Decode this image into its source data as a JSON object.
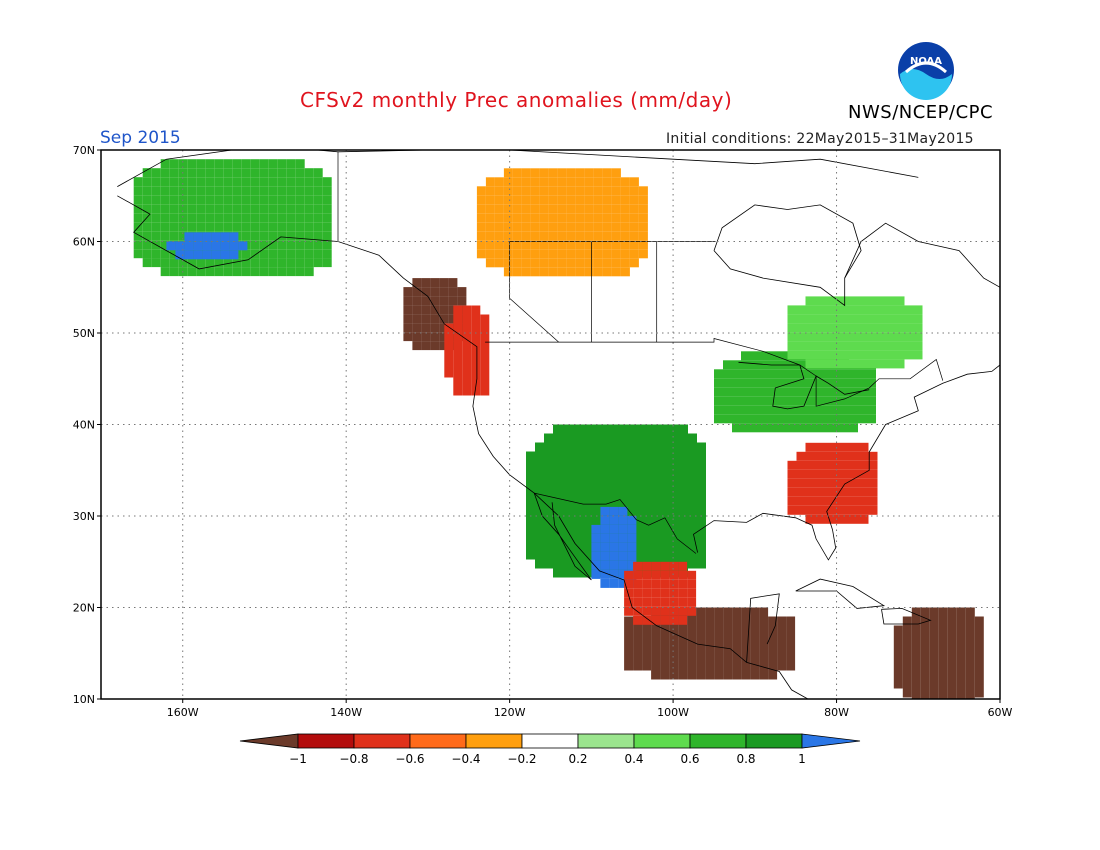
{
  "header": {
    "title": "CFSv2 monthly Prec anomalies (mm/day)",
    "period": "Sep 2015",
    "initial_conditions": "Initial conditions: 22May2015–31May2015",
    "agency": "NWS/NCEP/CPC",
    "logo_text": "NOAA"
  },
  "map": {
    "lon_range": [
      -170,
      -60
    ],
    "lat_range": [
      10,
      70
    ],
    "lat_ticks": [
      {
        "value": 70,
        "label": "70N"
      },
      {
        "value": 60,
        "label": "60N"
      },
      {
        "value": 50,
        "label": "50N"
      },
      {
        "value": 40,
        "label": "40N"
      },
      {
        "value": 30,
        "label": "30N"
      },
      {
        "value": 20,
        "label": "20N"
      },
      {
        "value": 10,
        "label": "10N"
      }
    ],
    "lon_ticks": [
      {
        "value": -160,
        "label": "160W"
      },
      {
        "value": -140,
        "label": "140W"
      },
      {
        "value": -120,
        "label": "120W"
      },
      {
        "value": -100,
        "label": "100W"
      },
      {
        "value": -80,
        "label": "80W"
      },
      {
        "value": -60,
        "label": "60W"
      }
    ],
    "gridlines": "dotted",
    "anomaly_regions": [
      {
        "name": "alaska-wet",
        "category": 0.6,
        "lon": [
          -166,
          -142
        ],
        "lat": [
          57,
          69
        ]
      },
      {
        "name": "alaska-wettest",
        "category": 1.0,
        "lon": [
          -162,
          -153
        ],
        "lat": [
          59,
          61
        ]
      },
      {
        "name": "yukon-dry",
        "category": -0.4,
        "lon": [
          -124,
          -104
        ],
        "lat": [
          57,
          68
        ]
      },
      {
        "name": "bc-coast-very-dry",
        "category": -1.0,
        "lon": [
          -133,
          -126
        ],
        "lat": [
          49,
          56
        ]
      },
      {
        "name": "pacific-nw-dry",
        "category": -0.8,
        "lon": [
          -128,
          -123
        ],
        "lat": [
          44,
          53
        ]
      },
      {
        "name": "us-southwest-wet",
        "category": 0.8,
        "lon": [
          -118,
          -96
        ],
        "lat": [
          24,
          40
        ]
      },
      {
        "name": "mexico-nw-wettest",
        "category": 1.0,
        "lon": [
          -110,
          -105
        ],
        "lat": [
          23,
          31
        ]
      },
      {
        "name": "great-lakes-wet",
        "category": 0.6,
        "lon": [
          -95,
          -76
        ],
        "lat": [
          40,
          48
        ]
      },
      {
        "name": "se-us-dry",
        "category": -0.8,
        "lon": [
          -86,
          -75
        ],
        "lat": [
          30,
          38
        ]
      },
      {
        "name": "mexico-south-very-dry",
        "category": -1.0,
        "lon": [
          -106,
          -86
        ],
        "lat": [
          13,
          20
        ]
      },
      {
        "name": "gulf-mexico-dry",
        "category": -0.8,
        "lon": [
          -106,
          -98
        ],
        "lat": [
          19,
          25
        ]
      },
      {
        "name": "quebec-wet",
        "category": 0.4,
        "lon": [
          -86,
          -70
        ],
        "lat": [
          47,
          54
        ]
      },
      {
        "name": "caribbean-very-dry",
        "category": -1.0,
        "lon": [
          -73,
          -62
        ],
        "lat": [
          10,
          20
        ]
      }
    ]
  },
  "colorbar": {
    "labels": [
      "−1",
      "−0.8",
      "−0.6",
      "−0.4",
      "−0.2",
      "0.2",
      "0.4",
      "0.6",
      "0.8",
      "1"
    ],
    "colors": [
      "#6b3a2a",
      "#b30c0c",
      "#e0311b",
      "#ff6a1a",
      "#ff9f0f",
      "#ffffff",
      "#9be58e",
      "#5edb4e",
      "#2fb52b",
      "#1a9a22",
      "#2a76e6"
    ]
  }
}
